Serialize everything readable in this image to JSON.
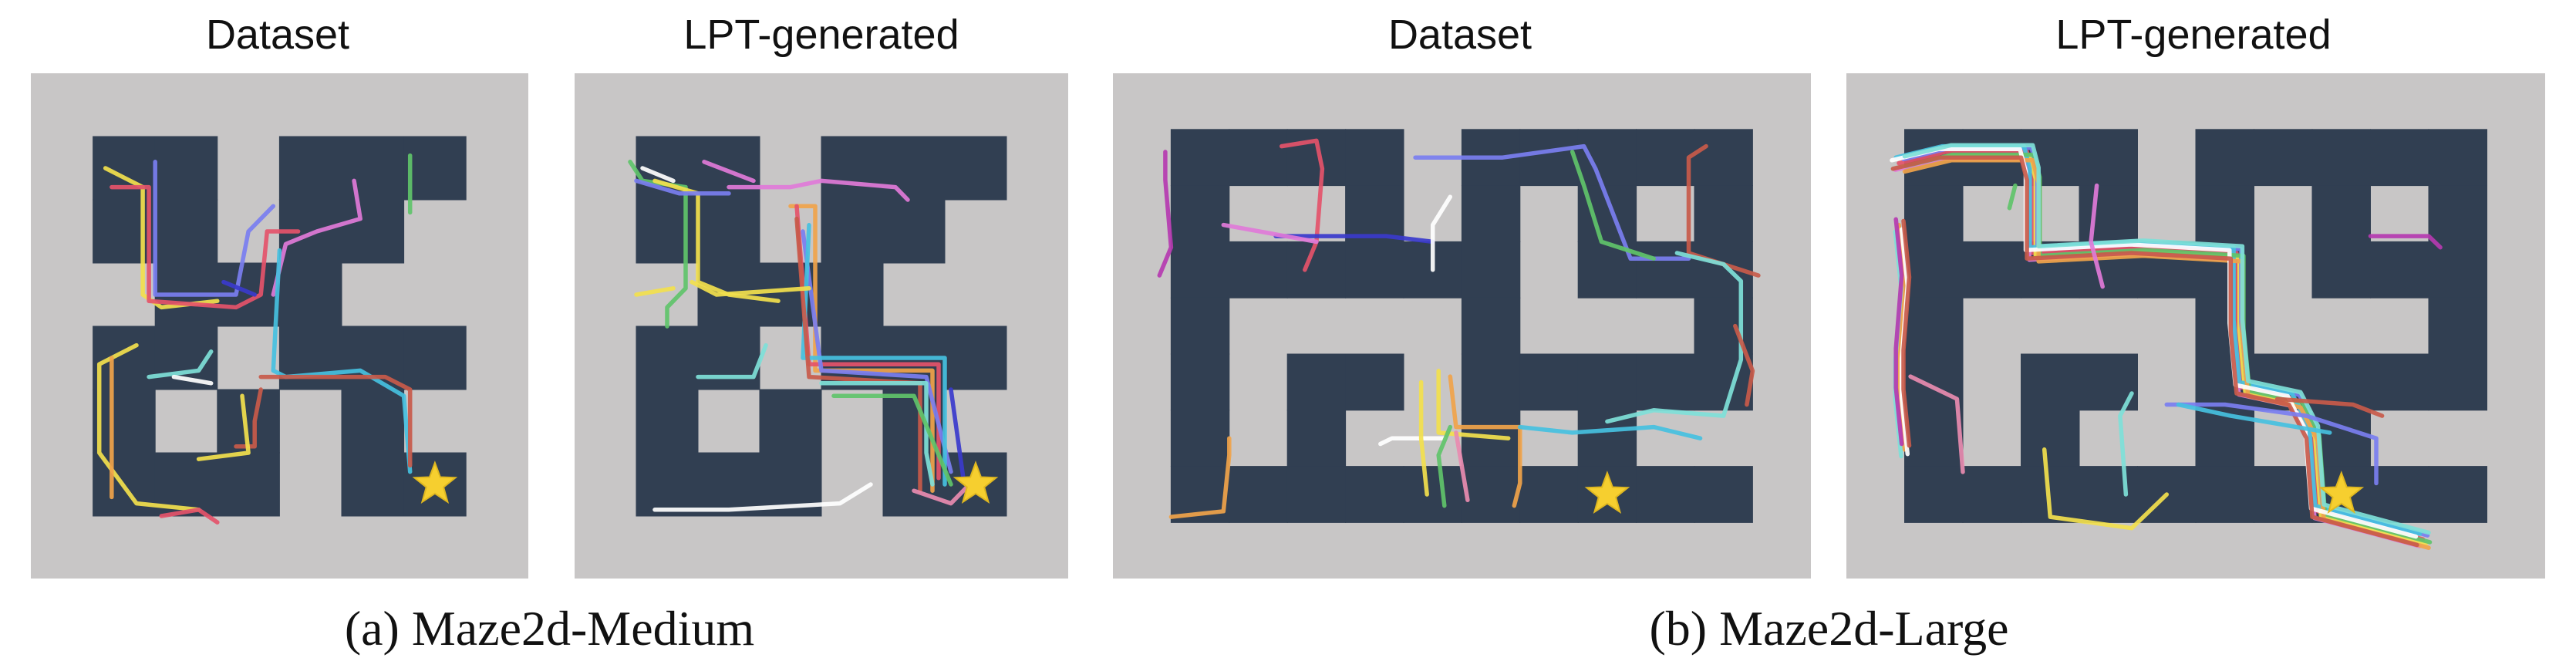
{
  "colors": {
    "outer": "#c8c6c6",
    "wall": "#313f52",
    "star": "#f6cf2f"
  },
  "panels": [
    {
      "title": "Dataset"
    },
    {
      "title": "LPT-generated"
    },
    {
      "title": "Dataset"
    },
    {
      "title": "LPT-generated"
    }
  ],
  "captions": [
    "(a) Maze2d-Medium",
    "(b) Maze2d-Large"
  ],
  "goal_marker": "star-icon"
}
